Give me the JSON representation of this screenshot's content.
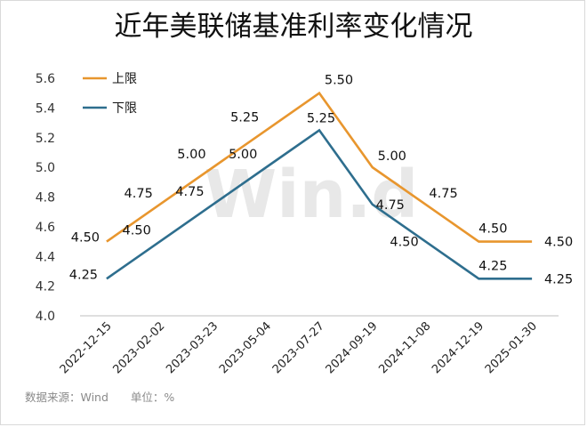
{
  "chart_data": {
    "type": "line",
    "title": "近年美联储基准利率变化情况",
    "categories": [
      "2022-12-15",
      "2023-02-02",
      "2023-03-23",
      "2023-05-04",
      "2023-07-27",
      "2024-09-19",
      "2024-11-08",
      "2024-12-19",
      "2025-01-30"
    ],
    "series": [
      {
        "name": "上限",
        "color": "#E8962E",
        "values": [
          4.5,
          4.75,
          5.0,
          5.25,
          5.5,
          5.0,
          4.75,
          4.5,
          4.5
        ],
        "labels": [
          "4.50",
          "4.75",
          "5.00",
          "5.25",
          "5.50",
          "5.00",
          "4.75",
          "4.50",
          "4.50"
        ]
      },
      {
        "name": "下限",
        "color": "#2E6E8E",
        "values": [
          4.25,
          4.5,
          4.75,
          5.0,
          5.25,
          4.75,
          4.5,
          4.25,
          4.25
        ],
        "labels": [
          "4.25",
          "4.50",
          "4.75",
          "5.00",
          "5.25",
          "4.75",
          "4.50",
          "4.25",
          "4.25"
        ]
      }
    ],
    "yticks": [
      "4.0",
      "4.2",
      "4.4",
      "4.6",
      "4.8",
      "5.0",
      "5.2",
      "5.4",
      "5.6"
    ],
    "ylim": [
      4.0,
      5.6
    ],
    "grid": false,
    "legend_position": "top-left",
    "watermark": "Win.d",
    "source_note": "数据来源：Wind　　单位：%"
  }
}
